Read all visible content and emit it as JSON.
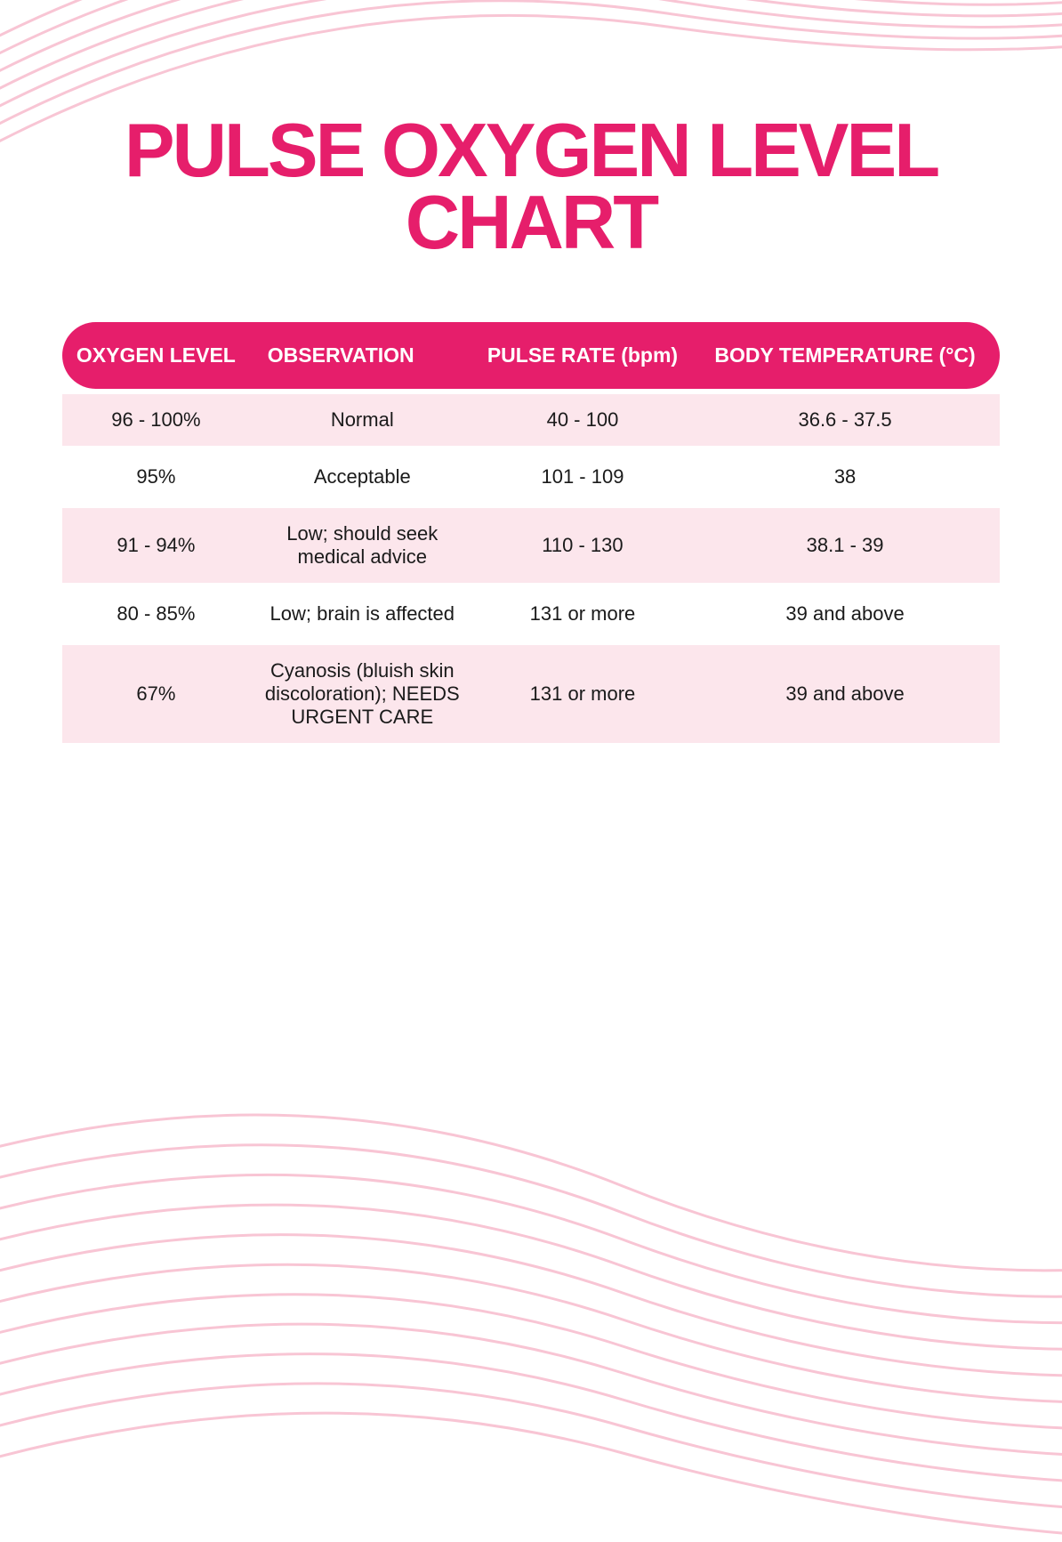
{
  "title": "PULSE OXYGEN LEVEL CHART",
  "colors": {
    "title_color": "#e61e6b",
    "header_bg": "#e61e6b",
    "header_text": "#ffffff",
    "row_bg_odd": "#fce6ec",
    "row_bg_even": "#ffffff",
    "row_text": "#1a1a1a",
    "wave_stroke": "#f8c5d4",
    "page_bg": "#ffffff"
  },
  "table": {
    "columns": [
      "OXYGEN LEVEL",
      "OBSERVATION",
      "PULSE RATE (bpm)",
      "BODY TEMPERATURE (°C)"
    ],
    "rows": [
      {
        "oxygen_level": "96 - 100%",
        "observation": "Normal",
        "pulse_rate": "40 - 100",
        "body_temp": "36.6 - 37.5"
      },
      {
        "oxygen_level": "95%",
        "observation": "Acceptable",
        "pulse_rate": "101 - 109",
        "body_temp": "38"
      },
      {
        "oxygen_level": "91 - 94%",
        "observation": "Low; should seek medical advice",
        "pulse_rate": "110 - 130",
        "body_temp": "38.1 - 39"
      },
      {
        "oxygen_level": "80 - 85%",
        "observation": "Low; brain is affected",
        "pulse_rate": "131 or more",
        "body_temp": "39 and above"
      },
      {
        "oxygen_level": "67%",
        "observation": "Cyanosis (bluish skin discoloration); NEEDS URGENT CARE",
        "pulse_rate": "131 or more",
        "body_temp": "39 and above"
      }
    ]
  },
  "styling": {
    "title_fontsize": 85,
    "header_fontsize": 23,
    "row_fontsize": 22,
    "header_border_radius": 40,
    "wave_stroke_width": 3
  }
}
